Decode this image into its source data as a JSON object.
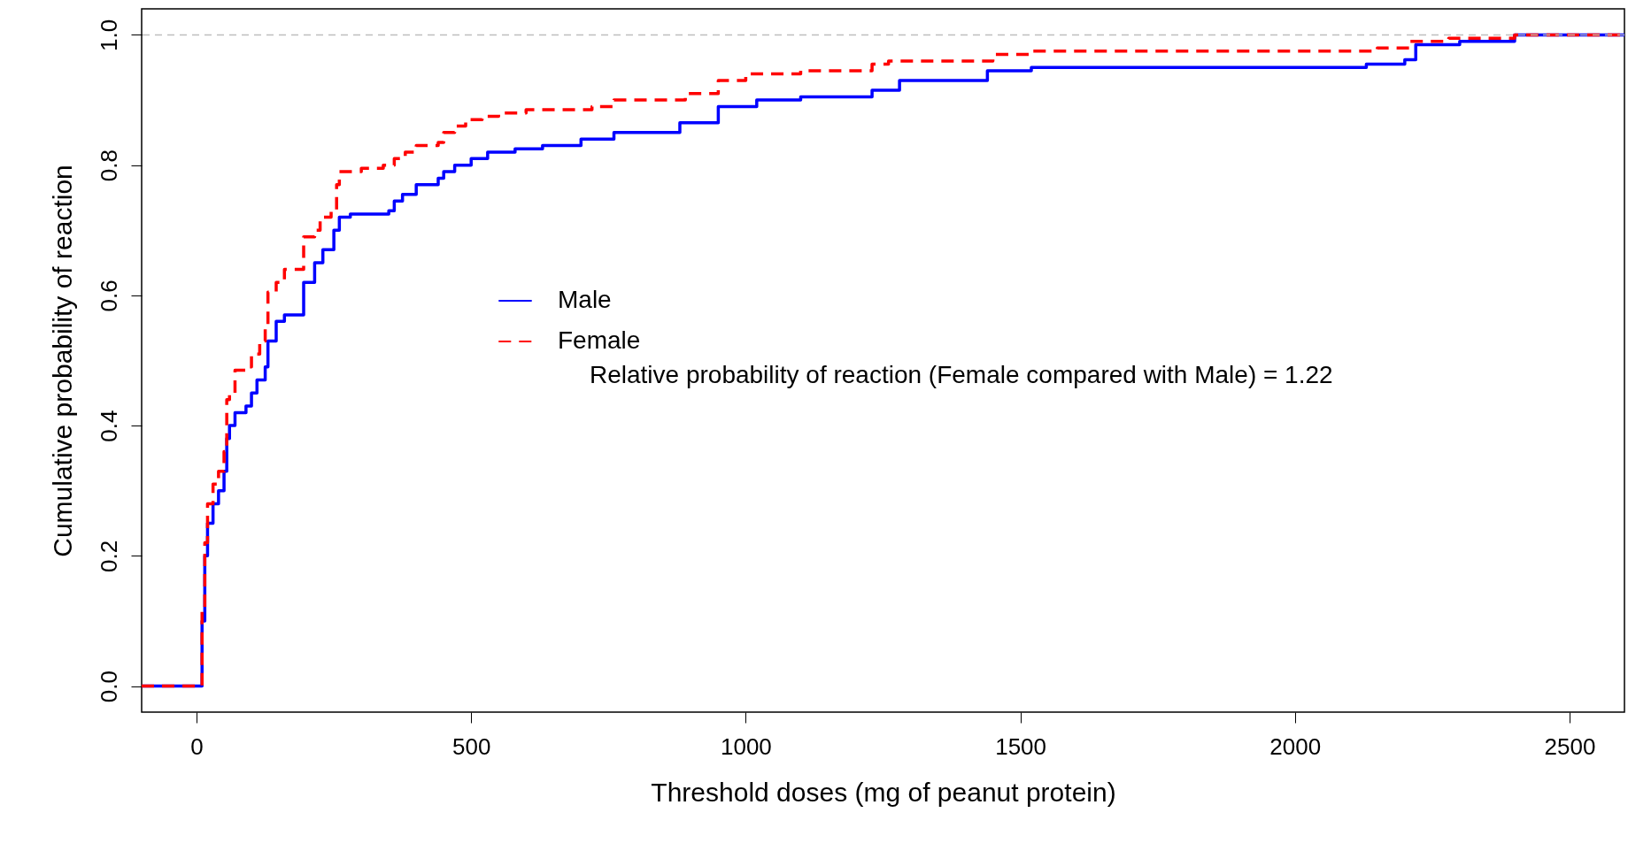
{
  "chart_data": {
    "type": "step",
    "xlabel": "Threshold doses (mg of peanut protein)",
    "ylabel": "Cumulative probability of reaction",
    "xlim": [
      -100,
      2600
    ],
    "ylim": [
      -0.04,
      1.04
    ],
    "xticks": [
      0,
      500,
      1000,
      1500,
      2000,
      2500
    ],
    "yticks": [
      {
        "value": 0,
        "label": "0.0"
      },
      0.2,
      0.4,
      0.6,
      0.8,
      {
        "value": 1,
        "label": "1.0"
      }
    ],
    "grid": false,
    "legend": "center",
    "annotations": [
      "Relative probability of reaction (Female compared with Male)  = 1.22"
    ],
    "ref_lines": [
      {
        "axis": "y",
        "value": 1,
        "color": "#bebebe",
        "line_style": "dashed"
      }
    ],
    "series": [
      {
        "name": "Male",
        "color": "#0000ff",
        "line_style": "solid",
        "x": [
          -100,
          0,
          10,
          15,
          20,
          30,
          40,
          50,
          55,
          60,
          70,
          90,
          100,
          110,
          125,
          130,
          145,
          160,
          195,
          215,
          230,
          250,
          260,
          280,
          350,
          360,
          375,
          400,
          440,
          450,
          470,
          500,
          530,
          580,
          630,
          700,
          760,
          880,
          950,
          1020,
          1100,
          1230,
          1280,
          1440,
          1520,
          2130,
          2200,
          2220,
          2300,
          2400,
          2600
        ],
        "values": [
          0,
          0,
          0.1,
          0.2,
          0.25,
          0.28,
          0.3,
          0.33,
          0.38,
          0.4,
          0.42,
          0.43,
          0.45,
          0.47,
          0.49,
          0.53,
          0.56,
          0.57,
          0.62,
          0.65,
          0.67,
          0.7,
          0.72,
          0.725,
          0.73,
          0.745,
          0.755,
          0.77,
          0.78,
          0.79,
          0.8,
          0.81,
          0.82,
          0.825,
          0.83,
          0.84,
          0.85,
          0.865,
          0.89,
          0.9,
          0.905,
          0.915,
          0.93,
          0.945,
          0.95,
          0.955,
          0.962,
          0.985,
          0.99,
          1,
          1
        ]
      },
      {
        "name": "Female",
        "color": "#ff0000",
        "line_style": "dashed",
        "x": [
          -100,
          0,
          10,
          15,
          20,
          30,
          40,
          50,
          55,
          60,
          70,
          90,
          100,
          115,
          125,
          130,
          145,
          160,
          195,
          215,
          225,
          245,
          255,
          260,
          300,
          340,
          360,
          380,
          400,
          440,
          450,
          470,
          490,
          520,
          550,
          600,
          720,
          760,
          890,
          950,
          1000,
          1100,
          1230,
          1260,
          1450,
          1520,
          2150,
          2210,
          2280,
          2400,
          2600
        ],
        "values": [
          0,
          0,
          0.12,
          0.22,
          0.28,
          0.31,
          0.33,
          0.36,
          0.44,
          0.45,
          0.485,
          0.49,
          0.51,
          0.53,
          0.555,
          0.605,
          0.62,
          0.64,
          0.69,
          0.7,
          0.72,
          0.73,
          0.77,
          0.79,
          0.795,
          0.8,
          0.81,
          0.82,
          0.83,
          0.835,
          0.85,
          0.86,
          0.87,
          0.875,
          0.88,
          0.885,
          0.89,
          0.9,
          0.91,
          0.93,
          0.94,
          0.945,
          0.955,
          0.96,
          0.97,
          0.975,
          0.98,
          0.99,
          0.995,
          1,
          1
        ]
      }
    ]
  }
}
